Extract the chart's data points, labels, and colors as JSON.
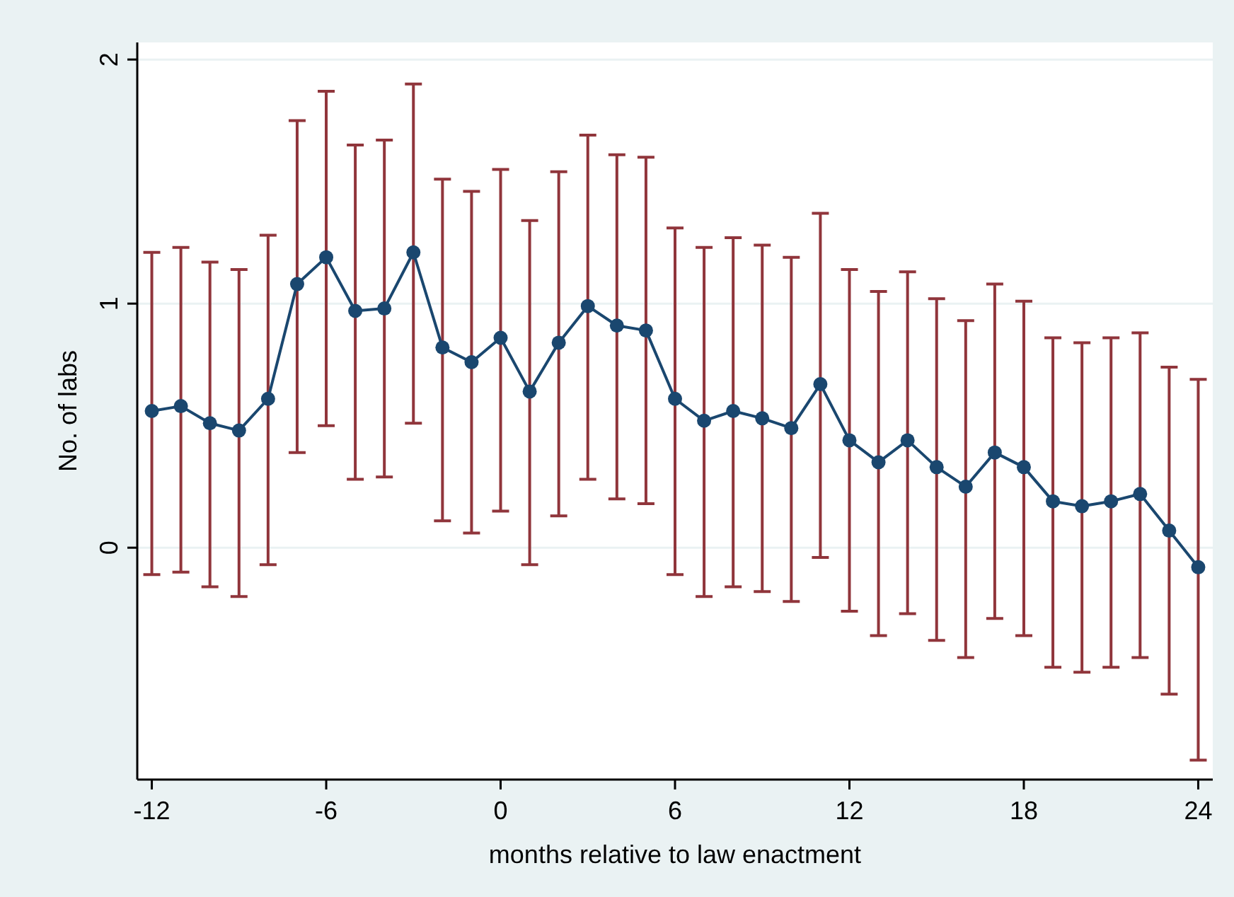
{
  "chart_data": {
    "type": "line",
    "xlabel": "months relative to law enactment",
    "ylabel": "No. of labs",
    "x": [
      -12,
      -11,
      -10,
      -9,
      -8,
      -7,
      -6,
      -5,
      -4,
      -3,
      -2,
      -1,
      0,
      1,
      2,
      3,
      4,
      5,
      6,
      7,
      8,
      9,
      10,
      11,
      12,
      13,
      14,
      15,
      16,
      17,
      18,
      19,
      20,
      21,
      22,
      23,
      24
    ],
    "series": [
      {
        "color": "#1a476f",
        "values": [
          0.56,
          0.58,
          0.51,
          0.48,
          0.61,
          1.08,
          1.19,
          0.97,
          0.98,
          1.21,
          0.82,
          0.76,
          0.86,
          0.64,
          0.84,
          0.99,
          0.91,
          0.89,
          0.61,
          0.52,
          0.56,
          0.53,
          0.49,
          0.67,
          0.44,
          0.35,
          0.44,
          0.33,
          0.25,
          0.39,
          0.33,
          0.19,
          0.17,
          0.19,
          0.22,
          0.07,
          -0.08
        ],
        "errors": [
          [
            -0.11,
            1.21
          ],
          [
            -0.1,
            1.23
          ],
          [
            -0.16,
            1.17
          ],
          [
            -0.2,
            1.14
          ],
          [
            -0.07,
            1.28
          ],
          [
            0.39,
            1.75
          ],
          [
            0.5,
            1.87
          ],
          [
            0.28,
            1.65
          ],
          [
            0.29,
            1.67
          ],
          [
            0.51,
            1.9
          ],
          [
            0.11,
            1.51
          ],
          [
            0.06,
            1.46
          ],
          [
            0.15,
            1.55
          ],
          [
            -0.07,
            1.34
          ],
          [
            0.13,
            1.54
          ],
          [
            0.28,
            1.69
          ],
          [
            0.2,
            1.61
          ],
          [
            0.18,
            1.6
          ],
          [
            -0.11,
            1.31
          ],
          [
            -0.2,
            1.23
          ],
          [
            -0.16,
            1.27
          ],
          [
            -0.18,
            1.24
          ],
          [
            -0.22,
            1.19
          ],
          [
            -0.04,
            1.37
          ],
          [
            -0.26,
            1.14
          ],
          [
            -0.36,
            1.05
          ],
          [
            -0.27,
            1.13
          ],
          [
            -0.38,
            1.02
          ],
          [
            -0.45,
            0.93
          ],
          [
            -0.29,
            1.08
          ],
          [
            -0.36,
            1.01
          ],
          [
            -0.49,
            0.86
          ],
          [
            -0.51,
            0.84
          ],
          [
            -0.49,
            0.86
          ],
          [
            -0.45,
            0.88
          ],
          [
            -0.6,
            0.74
          ],
          [
            -0.87,
            0.69
          ]
        ]
      }
    ],
    "xlim": [
      -12.5,
      24.5
    ],
    "ylim": [
      -0.95,
      2.07
    ],
    "xticks": [
      -12,
      -6,
      0,
      6,
      12,
      18,
      24
    ],
    "yticks": [
      0,
      1,
      2
    ],
    "grid": "y",
    "marker": "circle",
    "line_style": "solid"
  }
}
